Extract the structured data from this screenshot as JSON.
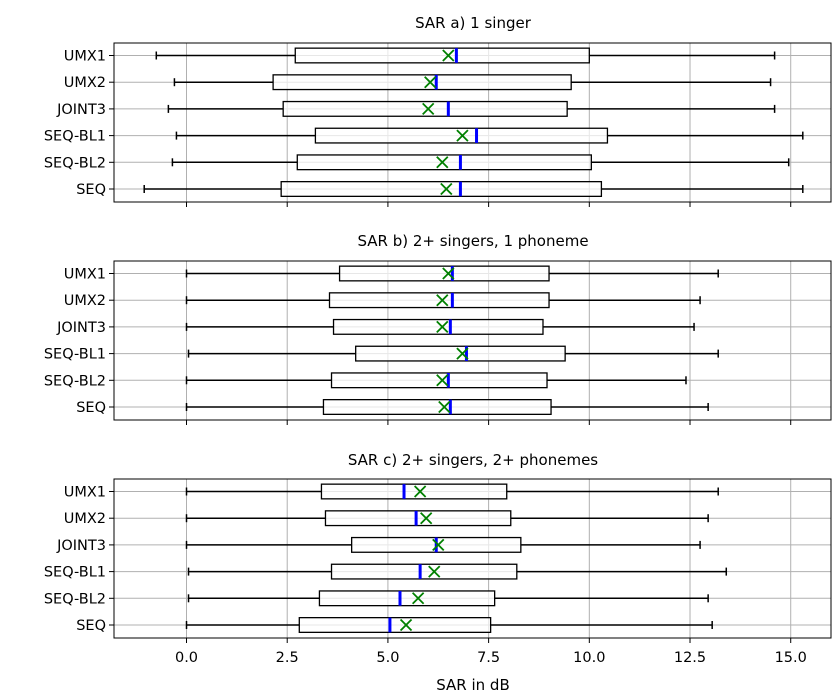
{
  "chart_data": {
    "type": "boxplot",
    "orientation": "horizontal",
    "xlabel": "SAR in dB",
    "xlim": [
      -1.8,
      16.0
    ],
    "xticks": [
      0.0,
      2.5,
      5.0,
      7.5,
      10.0,
      12.5,
      15.0
    ],
    "xtick_labels": [
      "0.0",
      "2.5",
      "5.0",
      "7.5",
      "10.0",
      "12.5",
      "15.0"
    ],
    "grid": true,
    "median_color": "#0000ff",
    "mean_marker_color": "#008000",
    "box_color": "#000000",
    "categories": [
      "UMX1",
      "UMX2",
      "JOINT3",
      "SEQ-BL1",
      "SEQ-BL2",
      "SEQ"
    ],
    "panels": [
      {
        "title": "SAR a) 1 singer",
        "boxes": [
          {
            "whisker_low": -0.75,
            "q1": 2.7,
            "median": 6.7,
            "q3": 10.0,
            "whisker_high": 14.6,
            "mean": 6.5
          },
          {
            "whisker_low": -0.3,
            "q1": 2.15,
            "median": 6.2,
            "q3": 9.55,
            "whisker_high": 14.5,
            "mean": 6.05
          },
          {
            "whisker_low": -0.45,
            "q1": 2.4,
            "median": 6.5,
            "q3": 9.45,
            "whisker_high": 14.6,
            "mean": 6.0
          },
          {
            "whisker_low": -0.25,
            "q1": 3.2,
            "median": 7.2,
            "q3": 10.45,
            "whisker_high": 15.3,
            "mean": 6.85
          },
          {
            "whisker_low": -0.35,
            "q1": 2.75,
            "median": 6.8,
            "q3": 10.05,
            "whisker_high": 14.95,
            "mean": 6.35
          },
          {
            "whisker_low": -1.05,
            "q1": 2.35,
            "median": 6.8,
            "q3": 10.3,
            "whisker_high": 15.3,
            "mean": 6.45
          }
        ]
      },
      {
        "title": "SAR b) 2+ singers, 1 phoneme",
        "boxes": [
          {
            "whisker_low": 0.0,
            "q1": 3.8,
            "median": 6.6,
            "q3": 9.0,
            "whisker_high": 13.2,
            "mean": 6.5
          },
          {
            "whisker_low": 0.0,
            "q1": 3.55,
            "median": 6.6,
            "q3": 9.0,
            "whisker_high": 12.75,
            "mean": 6.35
          },
          {
            "whisker_low": 0.0,
            "q1": 3.65,
            "median": 6.55,
            "q3": 8.85,
            "whisker_high": 12.6,
            "mean": 6.35
          },
          {
            "whisker_low": 0.05,
            "q1": 4.2,
            "median": 6.95,
            "q3": 9.4,
            "whisker_high": 13.2,
            "mean": 6.85
          },
          {
            "whisker_low": 0.0,
            "q1": 3.6,
            "median": 6.5,
            "q3": 8.95,
            "whisker_high": 12.4,
            "mean": 6.35
          },
          {
            "whisker_low": 0.0,
            "q1": 3.4,
            "median": 6.55,
            "q3": 9.05,
            "whisker_high": 12.95,
            "mean": 6.4
          }
        ]
      },
      {
        "title": "SAR c) 2+ singers, 2+ phonemes",
        "boxes": [
          {
            "whisker_low": 0.0,
            "q1": 3.35,
            "median": 5.4,
            "q3": 7.95,
            "whisker_high": 13.2,
            "mean": 5.8
          },
          {
            "whisker_low": 0.0,
            "q1": 3.45,
            "median": 5.7,
            "q3": 8.05,
            "whisker_high": 12.95,
            "mean": 5.95
          },
          {
            "whisker_low": 0.0,
            "q1": 4.1,
            "median": 6.2,
            "q3": 8.3,
            "whisker_high": 12.75,
            "mean": 6.25
          },
          {
            "whisker_low": 0.05,
            "q1": 3.6,
            "median": 5.8,
            "q3": 8.2,
            "whisker_high": 13.4,
            "mean": 6.15
          },
          {
            "whisker_low": 0.05,
            "q1": 3.3,
            "median": 5.3,
            "q3": 7.65,
            "whisker_high": 12.95,
            "mean": 5.75
          },
          {
            "whisker_low": 0.0,
            "q1": 2.8,
            "median": 5.05,
            "q3": 7.55,
            "whisker_high": 13.05,
            "mean": 5.45
          }
        ]
      }
    ]
  }
}
